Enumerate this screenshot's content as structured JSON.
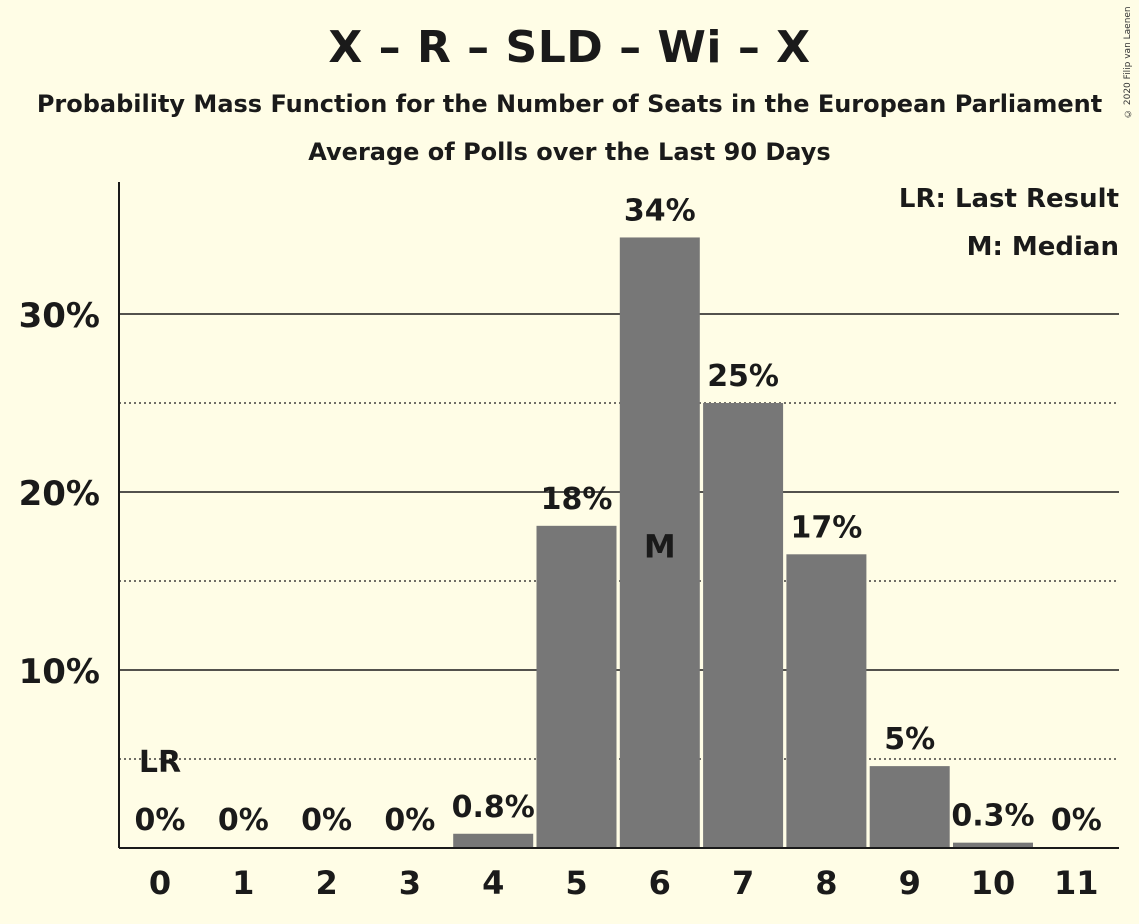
{
  "title": "X – R – SLD – Wi – X",
  "subtitle": "Probability Mass Function for the Number of Seats in the European Parliament",
  "subtitle2": "Average of Polls over the Last 90 Days",
  "copyright": "© 2020 Filip van Laenen",
  "legend": {
    "last_result": "LR: Last Result",
    "median": "M: Median"
  },
  "colors": {
    "background": "#fffde6",
    "bar": "#777777",
    "text": "#1a1a1a"
  },
  "chart_data": {
    "type": "bar",
    "categories": [
      "0",
      "1",
      "2",
      "3",
      "4",
      "5",
      "6",
      "7",
      "8",
      "9",
      "10",
      "11"
    ],
    "values": [
      0,
      0,
      0,
      0,
      0.8,
      18.1,
      34.3,
      25.0,
      16.5,
      4.6,
      0.3,
      0
    ],
    "value_labels": [
      "0%",
      "0%",
      "0%",
      "0%",
      "0.8%",
      "18%",
      "34%",
      "25%",
      "17%",
      "5%",
      "0.3%",
      "0%"
    ],
    "y_ticks": [
      10,
      20,
      30
    ],
    "y_tick_labels": [
      "10%",
      "20%",
      "30%"
    ],
    "y_minor_ticks": [
      5,
      15,
      25
    ],
    "ylim": [
      0,
      37.5
    ],
    "last_result": {
      "category": "0",
      "label": "LR"
    },
    "median": {
      "category": "6",
      "label": "M"
    },
    "grid": true
  }
}
